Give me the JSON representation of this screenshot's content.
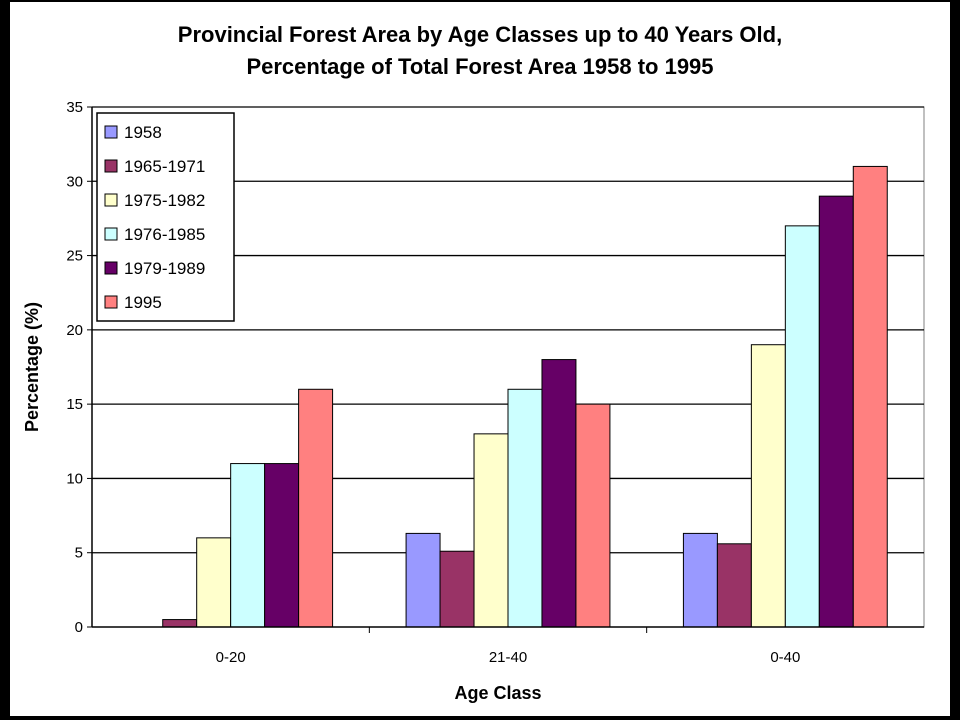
{
  "chart_data": {
    "type": "bar",
    "title_lines": [
      "Provincial Forest Area by Age Classes up to 40 Years Old,",
      "Percentage of Total Forest Area 1958 to 1995"
    ],
    "xlabel": "Age Class",
    "ylabel": "Percentage (%)",
    "categories": [
      "0-20",
      "21-40",
      "0-40"
    ],
    "ylim": [
      0,
      35
    ],
    "yticks": [
      0,
      5,
      10,
      15,
      20,
      25,
      30,
      35
    ],
    "grid": "horizontal",
    "legend_position": "top-left",
    "series": [
      {
        "name": "1958",
        "color": "#9999ff",
        "values": [
          0,
          6.3,
          6.3
        ]
      },
      {
        "name": "1965-1971",
        "color": "#993366",
        "values": [
          0.5,
          5.1,
          5.6
        ]
      },
      {
        "name": "1975-1982",
        "color": "#ffffcc",
        "values": [
          6,
          13,
          19
        ]
      },
      {
        "name": "1976-1985",
        "color": "#ccffff",
        "values": [
          11,
          16,
          27
        ]
      },
      {
        "name": "1979-1989",
        "color": "#660066",
        "values": [
          11,
          18,
          29
        ]
      },
      {
        "name": "1995",
        "color": "#ff8080",
        "values": [
          16,
          15,
          31
        ]
      }
    ]
  }
}
